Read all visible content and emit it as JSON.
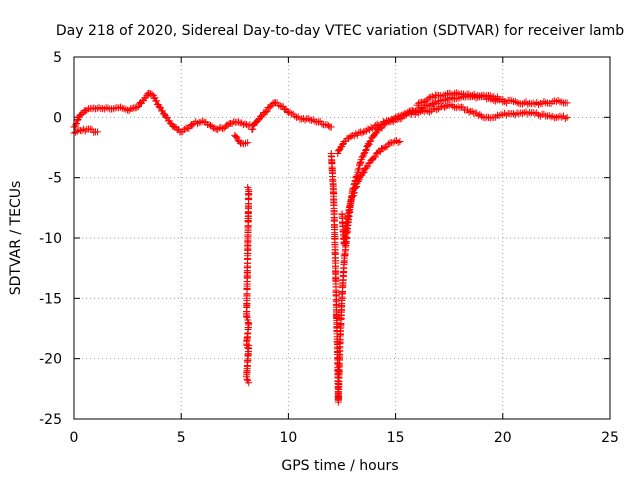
{
  "chart_data": {
    "type": "scatter",
    "title": "Day 218 of 2020, Sidereal Day-to-day VTEC variation (SDTVAR) for receiver lamb",
    "xlabel": "GPS time / hours",
    "ylabel": "SDTVAR / TECUs",
    "xlim": [
      0,
      25
    ],
    "ylim": [
      -25,
      5
    ],
    "xticks": [
      0,
      5,
      10,
      15,
      20,
      25
    ],
    "yticks": [
      -25,
      -20,
      -15,
      -10,
      -5,
      0,
      5
    ],
    "grid": true,
    "marker": "+",
    "color": "#ff0000",
    "series": [
      {
        "name": "base_track",
        "points": [
          [
            0,
            -0.8
          ],
          [
            0.3,
            0.2
          ],
          [
            0.6,
            0.6
          ],
          [
            1,
            0.7
          ],
          [
            1.5,
            0.8
          ],
          [
            2,
            0.8
          ],
          [
            2.5,
            0.6
          ],
          [
            3,
            0.9
          ],
          [
            3.3,
            1.6
          ],
          [
            3.5,
            2.0
          ],
          [
            3.7,
            1.8
          ],
          [
            4,
            0.8
          ],
          [
            4.3,
            0.0
          ],
          [
            4.7,
            -0.8
          ],
          [
            5,
            -1.2
          ],
          [
            5.3,
            -0.9
          ],
          [
            5.6,
            -0.5
          ],
          [
            6,
            -0.3
          ],
          [
            6.3,
            -0.6
          ],
          [
            6.7,
            -1.0
          ],
          [
            7,
            -0.9
          ],
          [
            7.3,
            -0.5
          ],
          [
            7.6,
            -0.4
          ],
          [
            7.9,
            -0.6
          ],
          [
            8.2,
            -0.6
          ]
        ]
      },
      {
        "name": "early_lower_track",
        "points": [
          [
            0,
            -1.3
          ],
          [
            0.3,
            -1.1
          ],
          [
            0.6,
            -1.0
          ],
          [
            1,
            -1.2
          ],
          [
            1.1,
            -1.2
          ]
        ]
      },
      {
        "name": "pre_gap_dip",
        "points": [
          [
            7.5,
            -1.5
          ],
          [
            7.7,
            -2.0
          ],
          [
            7.9,
            -2.2
          ],
          [
            8.1,
            -2.1
          ]
        ]
      },
      {
        "name": "isolated_8h",
        "points": [
          [
            8.1,
            -5.8
          ],
          [
            8.15,
            -6.0
          ],
          [
            8.05,
            -16.5
          ],
          [
            8.1,
            -16.8
          ],
          [
            8.15,
            -17.1
          ],
          [
            8.05,
            -18.8
          ],
          [
            8.1,
            -19.1
          ],
          [
            8.15,
            -18.9
          ],
          [
            8.05,
            -21.5
          ],
          [
            8.1,
            -21.8
          ],
          [
            8.15,
            -22.0
          ]
        ]
      },
      {
        "name": "midday_track",
        "points": [
          [
            8.3,
            -1.0
          ],
          [
            8.5,
            -0.4
          ],
          [
            8.8,
            0.2
          ],
          [
            9.1,
            0.8
          ],
          [
            9.4,
            1.2
          ],
          [
            9.7,
            0.9
          ],
          [
            10,
            0.4
          ],
          [
            10.3,
            0.1
          ],
          [
            10.7,
            -0.1
          ],
          [
            11,
            -0.2
          ],
          [
            11.4,
            -0.4
          ],
          [
            11.8,
            -0.6
          ],
          [
            12.0,
            -0.8
          ]
        ]
      },
      {
        "name": "storm_track_1",
        "points": [
          [
            12.0,
            -3.0
          ],
          [
            12.1,
            -6.0
          ],
          [
            12.15,
            -9.0
          ],
          [
            12.2,
            -12.5
          ],
          [
            12.25,
            -16.5
          ],
          [
            12.3,
            -20.0
          ],
          [
            12.33,
            -23.6
          ],
          [
            12.4,
            -19.0
          ],
          [
            12.5,
            -15.0
          ],
          [
            12.6,
            -12.0
          ],
          [
            12.8,
            -8.5
          ],
          [
            13.0,
            -6.0
          ],
          [
            13.4,
            -3.5
          ],
          [
            13.8,
            -2.0
          ],
          [
            14.2,
            -1.0
          ],
          [
            14.6,
            -0.4
          ],
          [
            15.0,
            0.0
          ],
          [
            15.5,
            0.3
          ],
          [
            16,
            0.6
          ],
          [
            16.5,
            1.0
          ],
          [
            17,
            1.3
          ],
          [
            17.5,
            1.5
          ],
          [
            18,
            1.6
          ],
          [
            18.5,
            1.7
          ],
          [
            19,
            1.7
          ],
          [
            19.5,
            1.5
          ],
          [
            20,
            1.3
          ],
          [
            20.5,
            1.3
          ],
          [
            21,
            1.2
          ],
          [
            21.5,
            1.1
          ],
          [
            22,
            1.2
          ],
          [
            22.5,
            1.3
          ],
          [
            23,
            1.2
          ]
        ]
      },
      {
        "name": "storm_track_2",
        "points": [
          [
            12.5,
            -8.0
          ],
          [
            12.6,
            -10.5
          ],
          [
            12.7,
            -9.0
          ],
          [
            12.9,
            -7.0
          ],
          [
            13.2,
            -5.5
          ],
          [
            13.6,
            -4.2
          ],
          [
            14.0,
            -3.3
          ],
          [
            14.4,
            -2.6
          ],
          [
            14.8,
            -2.1
          ],
          [
            15.2,
            -2.0
          ]
        ]
      },
      {
        "name": "storm_track_3",
        "points": [
          [
            12.3,
            -3.0
          ],
          [
            12.6,
            -2.0
          ],
          [
            13.0,
            -1.5
          ],
          [
            13.5,
            -1.2
          ],
          [
            14,
            -0.8
          ],
          [
            14.5,
            -0.4
          ],
          [
            15,
            -0.2
          ],
          [
            15.5,
            0.2
          ],
          [
            16,
            0.4
          ],
          [
            16.5,
            0.5
          ],
          [
            17,
            0.7
          ],
          [
            17.5,
            1.0
          ],
          [
            18,
            0.8
          ],
          [
            18.5,
            0.5
          ],
          [
            19,
            0.1
          ],
          [
            19.5,
            0.0
          ],
          [
            20,
            0.2
          ],
          [
            20.5,
            0.3
          ],
          [
            21,
            0.4
          ],
          [
            21.5,
            0.3
          ],
          [
            22,
            0.1
          ],
          [
            22.5,
            0.0
          ],
          [
            23,
            0.0
          ]
        ]
      },
      {
        "name": "late_upper_track",
        "points": [
          [
            16,
            1.0
          ],
          [
            16.5,
            1.5
          ],
          [
            17,
            1.8
          ],
          [
            17.5,
            2.0
          ],
          [
            18,
            1.9
          ],
          [
            18.5,
            1.8
          ],
          [
            19,
            1.8
          ],
          [
            19.5,
            1.7
          ],
          [
            20,
            1.5
          ]
        ]
      }
    ]
  }
}
